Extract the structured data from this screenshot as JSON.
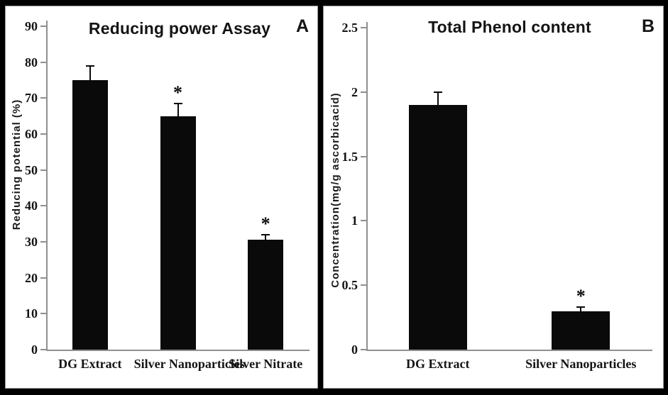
{
  "figure": {
    "background": "#000000",
    "panel_background": "#ffffff",
    "panel_border": "#9a9a9a",
    "axis_color": "#8f8f8f",
    "bar_color": "#0a0a0a",
    "text_color": "#141414"
  },
  "chart_data": [
    {
      "type": "bar",
      "panel_label": "A",
      "title": "Reducing power Assay",
      "xlabel": "",
      "ylabel": "Reducing potential (%)",
      "categories": [
        "DG Extract",
        "Silver Nanoparticles",
        "Silver Nitrate"
      ],
      "values": [
        75,
        65,
        30.5
      ],
      "errors": [
        4,
        3.5,
        1.5
      ],
      "significance": [
        "",
        "*",
        "*"
      ],
      "ylim": [
        0,
        90
      ],
      "yticks": [
        0,
        10,
        20,
        30,
        40,
        50,
        60,
        70,
        80,
        90
      ],
      "grid": false,
      "legend": "none"
    },
    {
      "type": "bar",
      "panel_label": "B",
      "title": "Total Phenol content",
      "xlabel": "",
      "ylabel": "Concentration(mg/g ascorbicacid)",
      "categories": [
        "DG Extract",
        "Silver Nanoparticles"
      ],
      "values": [
        1.9,
        0.3
      ],
      "errors": [
        0.1,
        0.03
      ],
      "significance": [
        "",
        "*"
      ],
      "ylim": [
        0,
        2.5
      ],
      "yticks": [
        0,
        0.5,
        1,
        1.5,
        2,
        2.5
      ],
      "grid": false,
      "legend": "none"
    }
  ]
}
